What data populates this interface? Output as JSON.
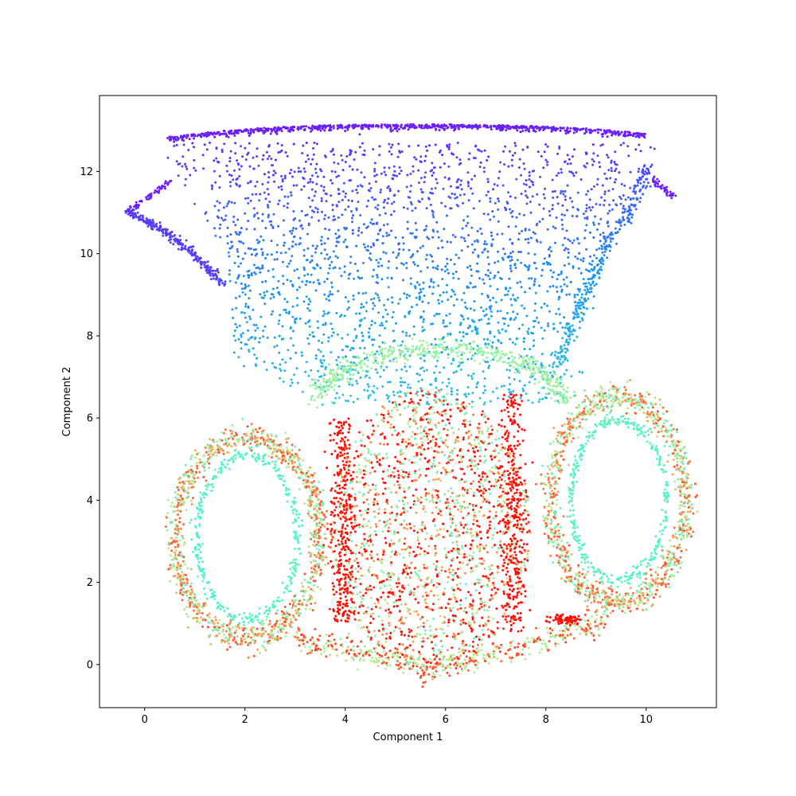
{
  "chart_data": {
    "type": "scatter",
    "title": "",
    "xlabel": "Component 1",
    "ylabel": "Component 2",
    "xlim": [
      -0.9,
      11.4
    ],
    "ylim": [
      -1.05,
      13.85
    ],
    "xticks": [
      0,
      2,
      4,
      6,
      8,
      10
    ],
    "yticks": [
      0,
      2,
      4,
      6,
      8,
      10,
      12
    ],
    "grid": false,
    "legend": "none",
    "colormap": "rainbow",
    "color_stops": [
      "#8000ff",
      "#1996f3",
      "#4cf2ce",
      "#b2f396",
      "#ff964f",
      "#ff0000"
    ],
    "approx_point_count": 9000,
    "regions": [
      {
        "shape": "fan-top-boundary",
        "color_value": 0.03,
        "x_range": [
          -0.4,
          10.6
        ],
        "y_range": [
          11.0,
          13.15
        ]
      },
      {
        "shape": "fan-interior",
        "color_value_range": [
          0.1,
          0.28
        ],
        "x_range": [
          1.5,
          10.2
        ],
        "y_range": [
          6.2,
          12.6
        ]
      },
      {
        "shape": "arc",
        "center": [
          5.9,
          7.0
        ],
        "radii": [
          2.4,
          0.8
        ],
        "color_value": 0.55,
        "note": "upper green arc"
      },
      {
        "shape": "ellipse-ring",
        "center": [
          2.0,
          3.1
        ],
        "radii": [
          1.4,
          2.5
        ],
        "color_value_range": [
          0.45,
          0.85
        ],
        "note": "left loop"
      },
      {
        "shape": "ellipse-ring",
        "center": [
          9.4,
          3.9
        ],
        "radii": [
          1.35,
          2.5
        ],
        "color_value_range": [
          0.45,
          0.85
        ],
        "note": "right loop"
      },
      {
        "shape": "filled-blob",
        "center": [
          5.7,
          3.3
        ],
        "radii": [
          2.1,
          3.4
        ],
        "color_value_range": [
          0.45,
          1.0
        ],
        "note": "central mixed blob"
      },
      {
        "shape": "dense-red-edges",
        "x_values": [
          4.0,
          7.4
        ],
        "y_range": [
          0.7,
          6.8
        ],
        "color_value": 0.98
      }
    ]
  }
}
